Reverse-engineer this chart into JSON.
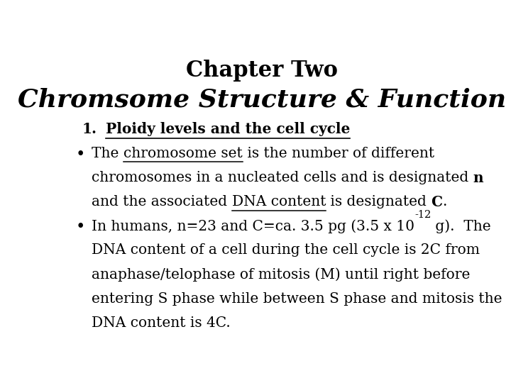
{
  "bg_color": "#ffffff",
  "title": "Chapter Two",
  "subtitle": "Chromsome Structure & Function",
  "title_fontsize": 22,
  "subtitle_fontsize": 26,
  "body_fontsize": 14.5,
  "heading1": "Ploidy levels and the cell cycle",
  "bullet_marker": "•",
  "bullet2_line1a": "In humans, n=23 and C=ca. 3.5 pg (3.5 x 10",
  "bullet2_sup": "-12",
  "bullet2_line1b": " g).  The",
  "bullet2_lines": [
    "DNA content of a cell during the cell cycle is 2C from",
    "anaphase/telophase of mitosis (M) until right before",
    "entering S phase while between S phase and mitosis the",
    "DNA content is 4C."
  ]
}
